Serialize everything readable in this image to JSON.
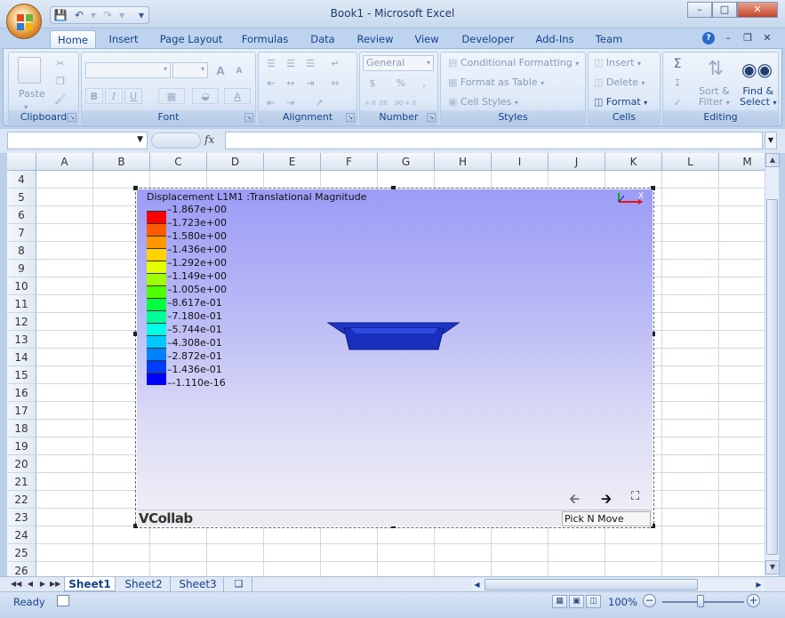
{
  "window": {
    "title": "Book1 - Microsoft Excel"
  },
  "qat": {
    "save": "save-icon",
    "undo": "undo-icon",
    "redo": "redo-icon"
  },
  "tabs": [
    "Home",
    "Insert",
    "Page Layout",
    "Formulas",
    "Data",
    "Review",
    "View",
    "Developer",
    "Add-Ins",
    "Team"
  ],
  "ribbon": {
    "clipboard": {
      "label": "Clipboard",
      "paste": "Paste"
    },
    "font": {
      "label": "Font",
      "bold": "B",
      "italic": "I",
      "underline": "U",
      "grow": "A",
      "shrink": "A"
    },
    "alignment": {
      "label": "Alignment"
    },
    "number": {
      "label": "Number",
      "format": "General",
      "currency": "$",
      "percent": "%",
      "comma": ",",
      "inc_dec": "+.0 .00",
      "dec_dec": ".00 +.0"
    },
    "styles": {
      "label": "Styles",
      "conditional": "Conditional Formatting",
      "table": "Format as Table",
      "cell_styles": "Cell Styles"
    },
    "cells": {
      "label": "Cells",
      "insert": "Insert",
      "delete": "Delete",
      "format": "Format"
    },
    "editing": {
      "label": "Editing",
      "sum": "Σ",
      "sort": "Sort &",
      "sort2": "Filter",
      "find": "Find &",
      "find2": "Select"
    }
  },
  "formula_bar": {
    "fx": "fx",
    "value": ""
  },
  "columns": [
    "A",
    "B",
    "C",
    "D",
    "E",
    "F",
    "G",
    "H",
    "I",
    "J",
    "K",
    "L",
    "M"
  ],
  "rows": [
    "4",
    "5",
    "6",
    "7",
    "8",
    "9",
    "10",
    "11",
    "12",
    "13",
    "14",
    "15",
    "16",
    "17",
    "18",
    "19",
    "20",
    "21",
    "22",
    "23",
    "24",
    "25",
    "26"
  ],
  "vcollab": {
    "title": "Displacement L1M1 :Translational Magnitude",
    "legend": [
      "1.867e+00",
      "1.723e+00",
      "1.580e+00",
      "1.436e+00",
      "1.292e+00",
      "1.149e+00",
      "1.005e+00",
      "8.617e-01",
      "7.180e-01",
      "5.744e-01",
      "4.308e-01",
      "2.872e-01",
      "1.436e-01",
      "-1.110e-16"
    ],
    "legend_colors": [
      "#ff0000",
      "#ff5a00",
      "#ff9600",
      "#ffd200",
      "#e6ff00",
      "#a0ff00",
      "#50ff00",
      "#00ff3c",
      "#00ff96",
      "#00ffe6",
      "#00c8ff",
      "#0082ff",
      "#003cff",
      "#0000ff"
    ],
    "logo": "VCollab",
    "mode": "Pick N Move"
  },
  "sheets": [
    "Sheet1",
    "Sheet2",
    "Sheet3"
  ],
  "status": {
    "ready": "Ready",
    "zoom": "100%"
  }
}
